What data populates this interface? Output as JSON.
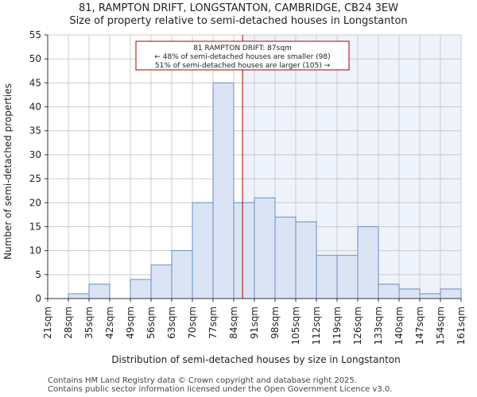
{
  "chart_data": {
    "type": "bar",
    "title": "81, RAMPTON DRIFT, LONGSTANTON, CAMBRIDGE, CB24 3EW",
    "subtitle": "Size of property relative to semi-detached houses in Longstanton",
    "xlabel": "Distribution of semi-detached houses by size in Longstanton",
    "ylabel": "Number of semi-detached properties",
    "ylim": [
      0,
      55
    ],
    "yticks": [
      0,
      5,
      10,
      15,
      20,
      25,
      30,
      35,
      40,
      45,
      50,
      55
    ],
    "bin_edges": [
      "21sqm",
      "28sqm",
      "35sqm",
      "42sqm",
      "49sqm",
      "56sqm",
      "63sqm",
      "70sqm",
      "77sqm",
      "84sqm",
      "91sqm",
      "98sqm",
      "105sqm",
      "112sqm",
      "119sqm",
      "126sqm",
      "133sqm",
      "140sqm",
      "147sqm",
      "154sqm",
      "161sqm"
    ],
    "values": [
      0,
      1,
      3,
      0,
      4,
      7,
      10,
      20,
      45,
      20,
      21,
      17,
      16,
      9,
      9,
      15,
      3,
      2,
      1,
      2
    ],
    "marker_value": 87,
    "x_range": [
      21,
      161
    ],
    "annotation": {
      "line1": "81 RAMPTON DRIFT: 87sqm",
      "line2": "← 48% of semi-detached houses are smaller (98)",
      "line3": "51% of semi-detached houses are larger (105) →"
    },
    "colors": {
      "bar_fill": "#dae4f4",
      "bar_stroke": "#6b8ebf",
      "highlight_bg": "#eef2fb",
      "marker_line": "#aa0000",
      "annotation_border": "#aa0000"
    }
  },
  "footer": {
    "line1": "Contains HM Land Registry data © Crown copyright and database right 2025.",
    "line2": "Contains public sector information licensed under the Open Government Licence v3.0."
  }
}
